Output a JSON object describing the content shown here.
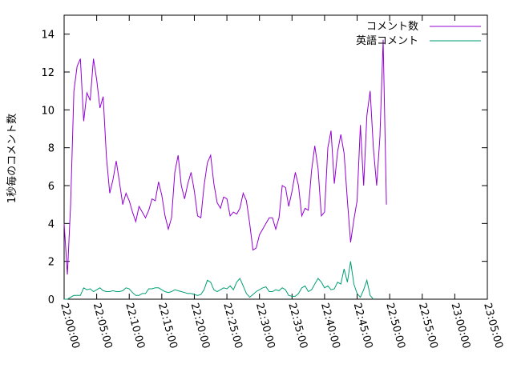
{
  "chart_data": {
    "type": "line",
    "ylabel": "1秒毎のコメント数",
    "xlabel": "",
    "ylim": [
      0,
      15
    ],
    "x_range": [
      "22:00:00",
      "23:05:00"
    ],
    "yticks": [
      0,
      2,
      4,
      6,
      8,
      10,
      12,
      14
    ],
    "xticks": [
      "22:00:00",
      "22:05:00",
      "22:10:00",
      "22:15:00",
      "22:20:00",
      "22:25:00",
      "22:30:00",
      "22:35:00",
      "22:40:00",
      "22:45:00",
      "22:50:00",
      "22:55:00",
      "23:00:00",
      "23:05:00"
    ],
    "legend_position": "top-right",
    "grid": false,
    "series": [
      {
        "name": "コメント数",
        "color": "#9400d3",
        "points": [
          [
            "22:00:00",
            4.0
          ],
          [
            "22:00:30",
            1.3
          ],
          [
            "22:01:00",
            5.0
          ],
          [
            "22:01:30",
            11.0
          ],
          [
            "22:02:00",
            12.3
          ],
          [
            "22:02:30",
            12.7
          ],
          [
            "22:03:00",
            9.4
          ],
          [
            "22:03:30",
            10.9
          ],
          [
            "22:04:00",
            10.5
          ],
          [
            "22:04:30",
            12.7
          ],
          [
            "22:05:00",
            11.6
          ],
          [
            "22:05:30",
            10.1
          ],
          [
            "22:06:00",
            10.7
          ],
          [
            "22:06:30",
            7.5
          ],
          [
            "22:07:00",
            5.6
          ],
          [
            "22:07:30",
            6.3
          ],
          [
            "22:08:00",
            7.3
          ],
          [
            "22:08:30",
            6.2
          ],
          [
            "22:09:00",
            5.0
          ],
          [
            "22:09:30",
            5.6
          ],
          [
            "22:10:00",
            5.2
          ],
          [
            "22:10:30",
            4.6
          ],
          [
            "22:11:00",
            4.1
          ],
          [
            "22:11:30",
            4.9
          ],
          [
            "22:12:00",
            4.6
          ],
          [
            "22:12:30",
            4.3
          ],
          [
            "22:13:00",
            4.7
          ],
          [
            "22:13:30",
            5.3
          ],
          [
            "22:14:00",
            5.2
          ],
          [
            "22:14:30",
            6.2
          ],
          [
            "22:15:00",
            5.5
          ],
          [
            "22:15:30",
            4.4
          ],
          [
            "22:16:00",
            3.7
          ],
          [
            "22:16:30",
            4.3
          ],
          [
            "22:17:00",
            6.7
          ],
          [
            "22:17:30",
            7.6
          ],
          [
            "22:18:00",
            6.0
          ],
          [
            "22:18:30",
            5.3
          ],
          [
            "22:19:00",
            6.1
          ],
          [
            "22:19:30",
            6.7
          ],
          [
            "22:20:00",
            5.7
          ],
          [
            "22:20:30",
            4.4
          ],
          [
            "22:21:00",
            4.3
          ],
          [
            "22:21:30",
            6.0
          ],
          [
            "22:22:00",
            7.2
          ],
          [
            "22:22:30",
            7.6
          ],
          [
            "22:23:00",
            6.1
          ],
          [
            "22:23:30",
            5.1
          ],
          [
            "22:24:00",
            4.8
          ],
          [
            "22:24:30",
            5.4
          ],
          [
            "22:25:00",
            5.3
          ],
          [
            "22:25:30",
            4.4
          ],
          [
            "22:26:00",
            4.6
          ],
          [
            "22:26:30",
            4.5
          ],
          [
            "22:27:00",
            4.8
          ],
          [
            "22:27:30",
            5.6
          ],
          [
            "22:28:00",
            5.2
          ],
          [
            "22:28:30",
            4.0
          ],
          [
            "22:29:00",
            2.6
          ],
          [
            "22:29:30",
            2.7
          ],
          [
            "22:30:00",
            3.4
          ],
          [
            "22:30:30",
            3.7
          ],
          [
            "22:31:00",
            4.0
          ],
          [
            "22:31:30",
            4.3
          ],
          [
            "22:32:00",
            4.3
          ],
          [
            "22:32:30",
            3.7
          ],
          [
            "22:33:00",
            4.3
          ],
          [
            "22:33:30",
            6.0
          ],
          [
            "22:34:00",
            5.9
          ],
          [
            "22:34:30",
            4.9
          ],
          [
            "22:35:00",
            5.7
          ],
          [
            "22:35:30",
            6.7
          ],
          [
            "22:36:00",
            6.0
          ],
          [
            "22:36:30",
            4.4
          ],
          [
            "22:37:00",
            4.8
          ],
          [
            "22:37:30",
            4.7
          ],
          [
            "22:38:00",
            6.8
          ],
          [
            "22:38:30",
            8.1
          ],
          [
            "22:39:00",
            6.9
          ],
          [
            "22:39:30",
            4.4
          ],
          [
            "22:40:00",
            4.6
          ],
          [
            "22:40:30",
            8.0
          ],
          [
            "22:41:00",
            8.9
          ],
          [
            "22:41:30",
            6.1
          ],
          [
            "22:42:00",
            7.8
          ],
          [
            "22:42:30",
            8.7
          ],
          [
            "22:43:00",
            7.7
          ],
          [
            "22:43:30",
            5.2
          ],
          [
            "22:44:00",
            3.0
          ],
          [
            "22:44:30",
            4.2
          ],
          [
            "22:45:00",
            5.2
          ],
          [
            "22:45:30",
            9.2
          ],
          [
            "22:46:00",
            6.0
          ],
          [
            "22:46:30",
            9.7
          ],
          [
            "22:47:00",
            11.0
          ],
          [
            "22:47:30",
            8.0
          ],
          [
            "22:48:00",
            6.0
          ],
          [
            "22:48:30",
            8.6
          ],
          [
            "22:49:00",
            13.7
          ],
          [
            "22:49:30",
            5.0
          ]
        ]
      },
      {
        "name": "英語コメント",
        "color": "#009e73",
        "points": [
          [
            "22:00:00",
            0.0
          ],
          [
            "22:00:30",
            0.0
          ],
          [
            "22:01:00",
            0.1
          ],
          [
            "22:01:30",
            0.2
          ],
          [
            "22:02:00",
            0.2
          ],
          [
            "22:02:30",
            0.2
          ],
          [
            "22:03:00",
            0.6
          ],
          [
            "22:03:30",
            0.5
          ],
          [
            "22:04:00",
            0.55
          ],
          [
            "22:04:30",
            0.4
          ],
          [
            "22:05:00",
            0.5
          ],
          [
            "22:05:30",
            0.6
          ],
          [
            "22:06:00",
            0.45
          ],
          [
            "22:06:30",
            0.4
          ],
          [
            "22:07:00",
            0.4
          ],
          [
            "22:07:30",
            0.45
          ],
          [
            "22:08:00",
            0.4
          ],
          [
            "22:08:30",
            0.4
          ],
          [
            "22:09:00",
            0.45
          ],
          [
            "22:09:30",
            0.6
          ],
          [
            "22:10:00",
            0.55
          ],
          [
            "22:10:30",
            0.35
          ],
          [
            "22:11:00",
            0.2
          ],
          [
            "22:11:30",
            0.2
          ],
          [
            "22:12:00",
            0.3
          ],
          [
            "22:12:30",
            0.3
          ],
          [
            "22:13:00",
            0.55
          ],
          [
            "22:13:30",
            0.55
          ],
          [
            "22:14:00",
            0.6
          ],
          [
            "22:14:30",
            0.6
          ],
          [
            "22:15:00",
            0.5
          ],
          [
            "22:15:30",
            0.4
          ],
          [
            "22:16:00",
            0.35
          ],
          [
            "22:16:30",
            0.4
          ],
          [
            "22:17:00",
            0.5
          ],
          [
            "22:17:30",
            0.45
          ],
          [
            "22:18:00",
            0.4
          ],
          [
            "22:18:30",
            0.35
          ],
          [
            "22:19:00",
            0.3
          ],
          [
            "22:19:30",
            0.3
          ],
          [
            "22:20:00",
            0.25
          ],
          [
            "22:20:30",
            0.2
          ],
          [
            "22:21:00",
            0.25
          ],
          [
            "22:21:30",
            0.5
          ],
          [
            "22:22:00",
            1.0
          ],
          [
            "22:22:30",
            0.9
          ],
          [
            "22:23:00",
            0.5
          ],
          [
            "22:23:30",
            0.4
          ],
          [
            "22:24:00",
            0.5
          ],
          [
            "22:24:30",
            0.6
          ],
          [
            "22:25:00",
            0.55
          ],
          [
            "22:25:30",
            0.7
          ],
          [
            "22:26:00",
            0.5
          ],
          [
            "22:26:30",
            0.9
          ],
          [
            "22:27:00",
            1.1
          ],
          [
            "22:27:30",
            0.7
          ],
          [
            "22:28:00",
            0.3
          ],
          [
            "22:28:30",
            0.1
          ],
          [
            "22:29:00",
            0.25
          ],
          [
            "22:29:30",
            0.4
          ],
          [
            "22:30:00",
            0.5
          ],
          [
            "22:30:30",
            0.6
          ],
          [
            "22:31:00",
            0.65
          ],
          [
            "22:31:30",
            0.4
          ],
          [
            "22:32:00",
            0.4
          ],
          [
            "22:32:30",
            0.5
          ],
          [
            "22:33:00",
            0.45
          ],
          [
            "22:33:30",
            0.6
          ],
          [
            "22:34:00",
            0.5
          ],
          [
            "22:34:30",
            0.2
          ],
          [
            "22:35:00",
            0.15
          ],
          [
            "22:35:30",
            0.15
          ],
          [
            "22:36:00",
            0.3
          ],
          [
            "22:36:30",
            0.6
          ],
          [
            "22:37:00",
            0.7
          ],
          [
            "22:37:30",
            0.4
          ],
          [
            "22:38:00",
            0.5
          ],
          [
            "22:38:30",
            0.8
          ],
          [
            "22:39:00",
            1.1
          ],
          [
            "22:39:30",
            0.9
          ],
          [
            "22:40:00",
            0.6
          ],
          [
            "22:40:30",
            0.7
          ],
          [
            "22:41:00",
            0.5
          ],
          [
            "22:41:30",
            0.55
          ],
          [
            "22:42:00",
            0.9
          ],
          [
            "22:42:30",
            0.8
          ],
          [
            "22:43:00",
            1.6
          ],
          [
            "22:43:30",
            0.9
          ],
          [
            "22:44:00",
            2.0
          ],
          [
            "22:44:30",
            0.8
          ],
          [
            "22:45:00",
            0.3
          ],
          [
            "22:45:30",
            0.1
          ],
          [
            "22:46:00",
            0.5
          ],
          [
            "22:46:30",
            1.0
          ],
          [
            "22:47:00",
            0.2
          ],
          [
            "22:47:30",
            0.0
          ]
        ]
      }
    ]
  }
}
